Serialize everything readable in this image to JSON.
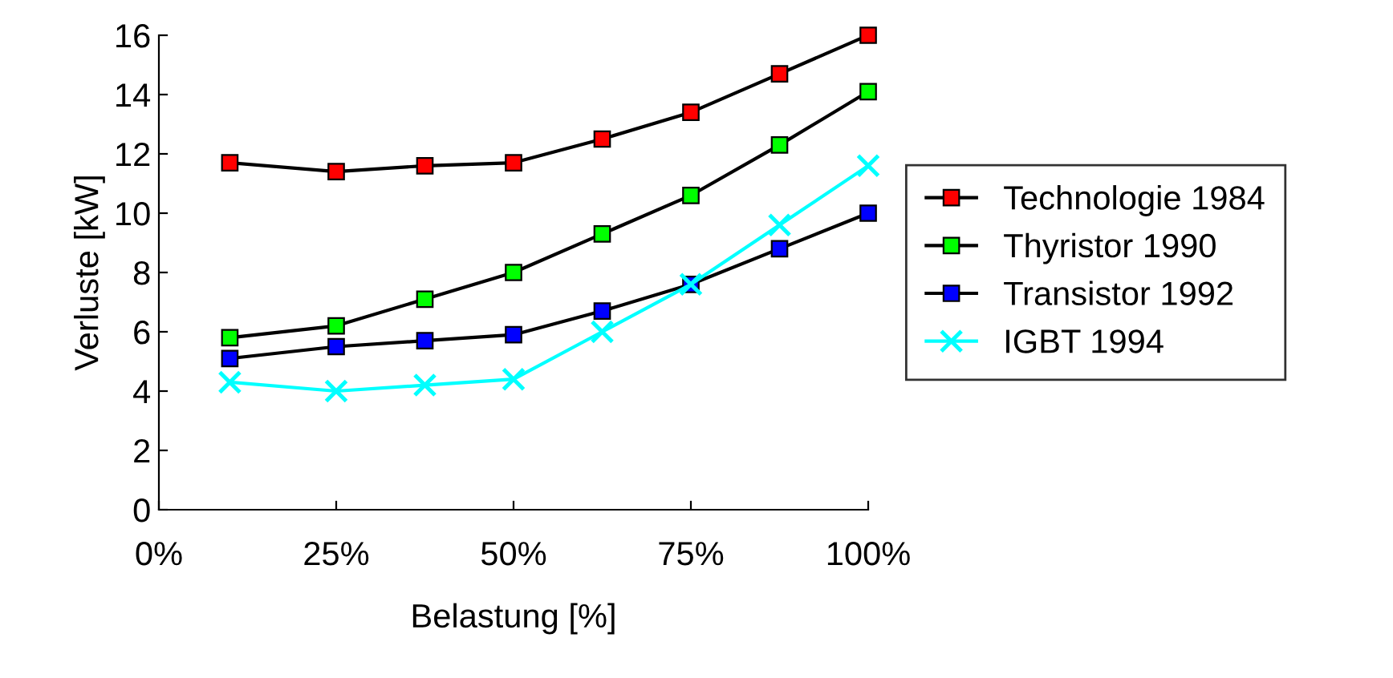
{
  "chart_data": {
    "type": "line",
    "xlabel": "Belastung [%]",
    "ylabel": "Verluste [kW]",
    "x": [
      10,
      25,
      37.5,
      50,
      62.5,
      75,
      87.5,
      100
    ],
    "series": [
      {
        "name": "Technologie 1984",
        "color": "#ff0000",
        "marker": "square",
        "values": [
          11.7,
          11.4,
          11.6,
          11.7,
          12.5,
          13.4,
          14.7,
          16.0
        ]
      },
      {
        "name": "Thyristor 1990",
        "color": "#00ff00",
        "marker": "square",
        "values": [
          5.8,
          6.2,
          7.1,
          8.0,
          9.3,
          10.6,
          12.3,
          14.1
        ]
      },
      {
        "name": "Transistor 1992",
        "color": "#0000ff",
        "marker": "square",
        "values": [
          5.1,
          5.5,
          5.7,
          5.9,
          6.7,
          7.6,
          8.8,
          10.0
        ]
      },
      {
        "name": "IGBT 1994",
        "color": "#00ffff",
        "marker": "cross",
        "values": [
          4.3,
          4.0,
          4.2,
          4.4,
          6.0,
          7.6,
          9.6,
          11.6
        ]
      }
    ],
    "xlim": [
      0,
      100
    ],
    "xticks": [
      {
        "value": 0,
        "label": "0%"
      },
      {
        "value": 25,
        "label": "25%"
      },
      {
        "value": 50,
        "label": "50%"
      },
      {
        "value": 75,
        "label": "75%"
      },
      {
        "value": 100,
        "label": "100%"
      }
    ],
    "ylim": [
      0,
      16
    ],
    "yticks": [
      0,
      2,
      4,
      6,
      8,
      10,
      12,
      14,
      16
    ],
    "grid": false,
    "legend": "right"
  }
}
